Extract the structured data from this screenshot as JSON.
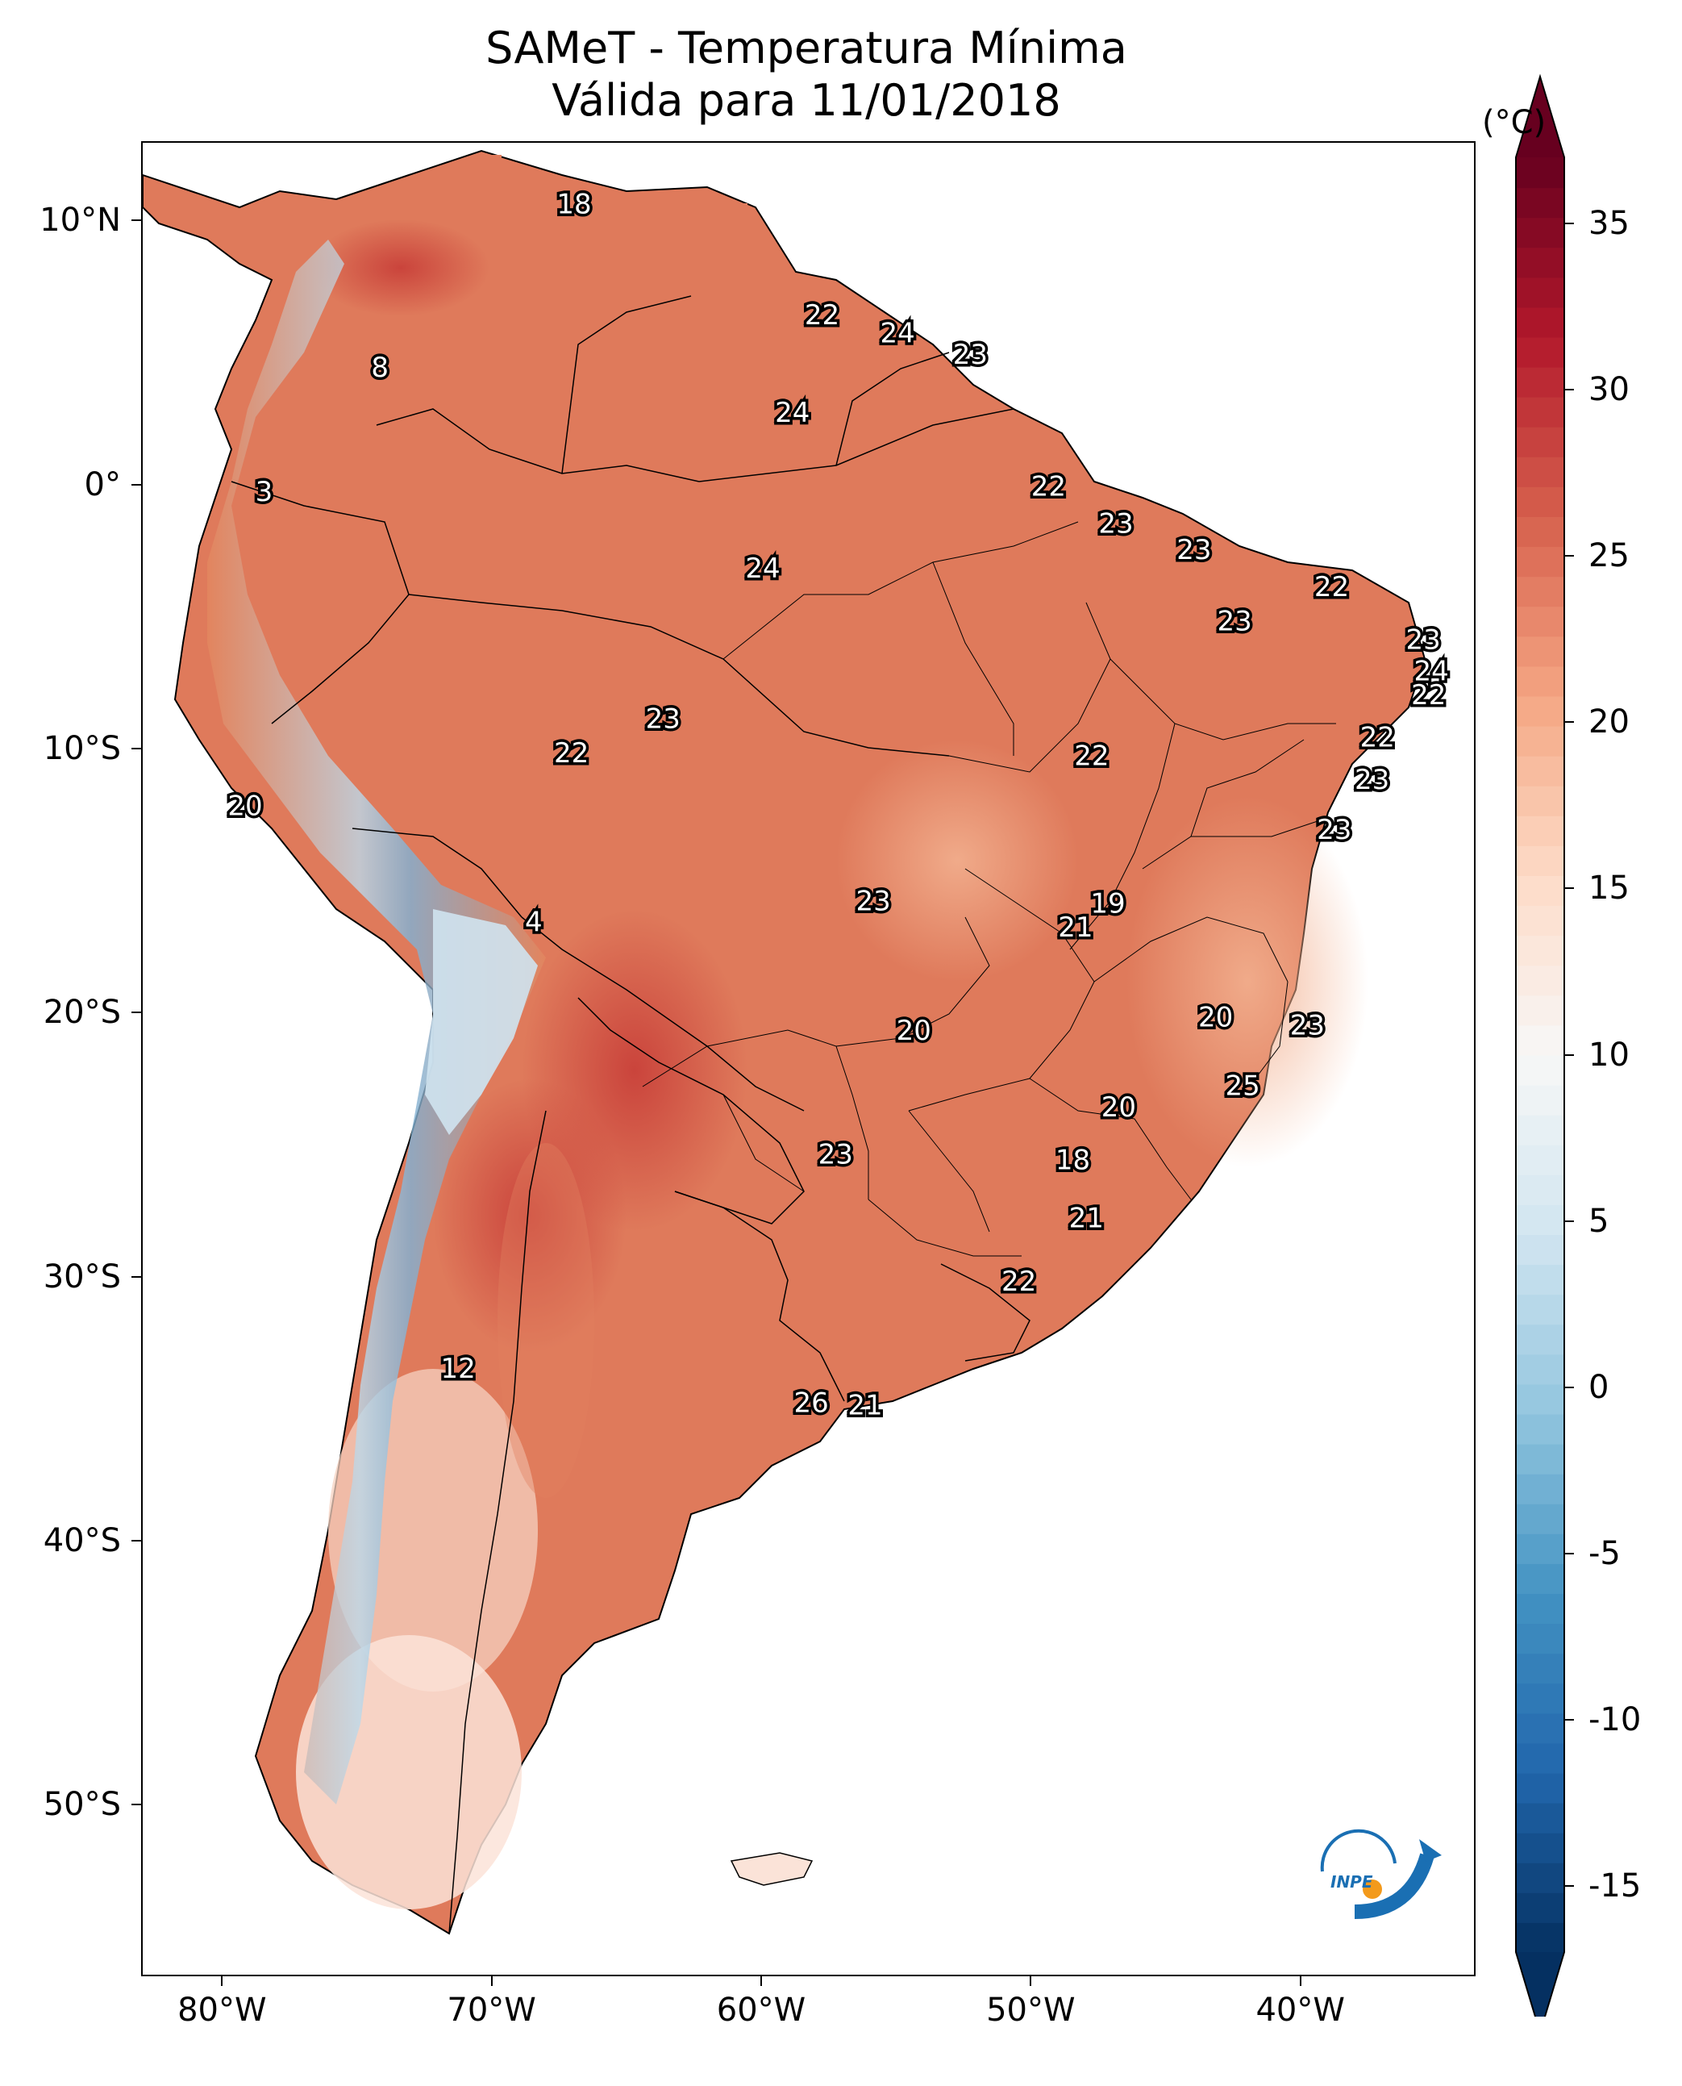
{
  "title": {
    "line1": "SAMeT - Temperatura Mínima",
    "line2": "Válida para 11/01/2018"
  },
  "axes": {
    "lat_labels": [
      "10°N",
      "0°",
      "10°S",
      "20°S",
      "30°S",
      "40°S",
      "50°S"
    ],
    "lat_values": [
      10,
      0,
      -10,
      -20,
      -30,
      -40,
      -50
    ],
    "lon_labels": [
      "80°W",
      "70°W",
      "60°W",
      "50°W",
      "40°W"
    ],
    "lon_values": [
      -80,
      -70,
      -60,
      -50,
      -40
    ]
  },
  "colorbar": {
    "unit": "(°C)",
    "ticks": [
      "35",
      "30",
      "25",
      "20",
      "15",
      "10",
      "5",
      "0",
      "-5",
      "-10",
      "-15"
    ],
    "tick_values": [
      35,
      30,
      25,
      20,
      15,
      10,
      5,
      0,
      -5,
      -10,
      -15
    ],
    "colors": [
      "#053061",
      "#2166ac",
      "#4393c3",
      "#92c5de",
      "#d1e5f0",
      "#f7f7f7",
      "#fddbc7",
      "#f4a582",
      "#d6604d",
      "#b2182b",
      "#67001f"
    ],
    "range": [
      -17,
      37
    ]
  },
  "map": {
    "lon_range": [
      -83,
      -33.5
    ],
    "lat_range": [
      -56.5,
      13
    ]
  },
  "point_labels": [
    {
      "text": "18",
      "lon": -67,
      "lat": 10.7
    },
    {
      "text": "22",
      "lon": -57.8,
      "lat": 6.5
    },
    {
      "text": "24",
      "lon": -55,
      "lat": 5.8
    },
    {
      "text": "23",
      "lon": -52.3,
      "lat": 5
    },
    {
      "text": "8",
      "lon": -74.2,
      "lat": 4.5
    },
    {
      "text": "24",
      "lon": -58.9,
      "lat": 2.8
    },
    {
      "text": "22",
      "lon": -49.4,
      "lat": 0
    },
    {
      "text": "3",
      "lon": -78.5,
      "lat": -0.2
    },
    {
      "text": "23",
      "lon": -46.9,
      "lat": -1.4
    },
    {
      "text": "23",
      "lon": -44,
      "lat": -2.4
    },
    {
      "text": "24",
      "lon": -60,
      "lat": -3.1
    },
    {
      "text": "22",
      "lon": -38.9,
      "lat": -3.8
    },
    {
      "text": "23",
      "lon": -42.5,
      "lat": -5.1
    },
    {
      "text": "23",
      "lon": -35.5,
      "lat": -5.8
    },
    {
      "text": "24",
      "lon": -35.2,
      "lat": -7
    },
    {
      "text": "22",
      "lon": -35.3,
      "lat": -7.9
    },
    {
      "text": "23",
      "lon": -63.7,
      "lat": -8.8
    },
    {
      "text": "22",
      "lon": -37.2,
      "lat": -9.5
    },
    {
      "text": "22",
      "lon": -67.1,
      "lat": -10.1
    },
    {
      "text": "22",
      "lon": -47.8,
      "lat": -10.2
    },
    {
      "text": "23",
      "lon": -37.4,
      "lat": -11.1
    },
    {
      "text": "20",
      "lon": -79.2,
      "lat": -12.1
    },
    {
      "text": "23",
      "lon": -38.8,
      "lat": -13
    },
    {
      "text": "23",
      "lon": -55.9,
      "lat": -15.7
    },
    {
      "text": "19",
      "lon": -47.2,
      "lat": -15.8
    },
    {
      "text": "21",
      "lon": -48.4,
      "lat": -16.7
    },
    {
      "text": "4",
      "lon": -68.5,
      "lat": -16.5
    },
    {
      "text": "20",
      "lon": -43.2,
      "lat": -20.1
    },
    {
      "text": "23",
      "lon": -39.8,
      "lat": -20.4
    },
    {
      "text": "20",
      "lon": -54.4,
      "lat": -20.6
    },
    {
      "text": "25",
      "lon": -42.2,
      "lat": -22.7
    },
    {
      "text": "20",
      "lon": -46.8,
      "lat": -23.5
    },
    {
      "text": "23",
      "lon": -57.3,
      "lat": -25.3
    },
    {
      "text": "18",
      "lon": -48.5,
      "lat": -25.5
    },
    {
      "text": "21",
      "lon": -48,
      "lat": -27.7
    },
    {
      "text": "22",
      "lon": -50.5,
      "lat": -30.1
    },
    {
      "text": "12",
      "lon": -71.3,
      "lat": -33.4
    },
    {
      "text": "26",
      "lon": -58.2,
      "lat": -34.7
    },
    {
      "text": "21",
      "lon": -56.2,
      "lat": -34.8
    }
  ]
}
